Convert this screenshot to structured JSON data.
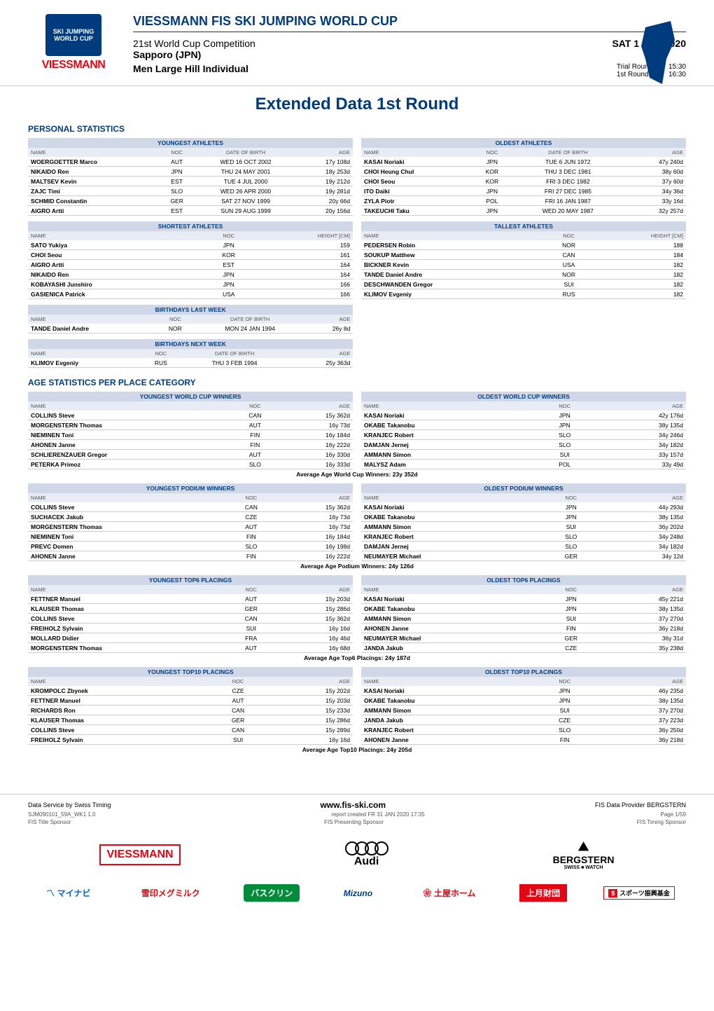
{
  "header": {
    "fis_logo_text": "SKI JUMPING WORLD CUP",
    "sponsor_header": "VIESSMANN",
    "cup_title": "VIESSMANN FIS SKI JUMPING WORLD CUP",
    "competition": "21st World Cup Competition",
    "location": "Sapporo (JPN)",
    "event": "Men Large Hill Individual",
    "date": "SAT 1 FEB 2020",
    "trial_label": "Trial Round:",
    "trial_time": "15:30",
    "first_label": "1st Round:",
    "first_time": "16:30"
  },
  "main_title": "Extended Data 1st Round",
  "sections": {
    "personal_stats_title": "PERSONAL STATISTICS",
    "age_stats_title": "AGE STATISTICS PER PLACE CATEGORY"
  },
  "tables": {
    "youngest_athletes": {
      "title": "YOUNGEST ATHLETES",
      "cols": [
        "NAME",
        "NOC",
        "DATE OF BIRTH",
        "AGE"
      ],
      "rows": [
        [
          "WOERGOETTER Marco",
          "AUT",
          "WED 16 OCT 2002",
          "17y 108d"
        ],
        [
          "NIKAIDO Ren",
          "JPN",
          "THU 24 MAY 2001",
          "18y 253d"
        ],
        [
          "MALTSEV Kevin",
          "EST",
          "TUE 4 JUL 2000",
          "19y 212d"
        ],
        [
          "ZAJC Timi",
          "SLO",
          "WED 26 APR 2000",
          "19y 281d"
        ],
        [
          "SCHMID Constantin",
          "GER",
          "SAT 27 NOV 1999",
          "20y 66d"
        ],
        [
          "AIGRO Artti",
          "EST",
          "SUN 29 AUG 1999",
          "20y 156d"
        ]
      ]
    },
    "oldest_athletes": {
      "title": "OLDEST ATHLETES",
      "cols": [
        "NAME",
        "NOC",
        "DATE OF BIRTH",
        "AGE"
      ],
      "rows": [
        [
          "KASAI Noriaki",
          "JPN",
          "TUE 6 JUN 1972",
          "47y 240d"
        ],
        [
          "CHOI Heung Chul",
          "KOR",
          "THU 3 DEC 1981",
          "38y 60d"
        ],
        [
          "CHOI Seou",
          "KOR",
          "FRI 3 DEC 1982",
          "37y 60d"
        ],
        [
          "ITO Daiki",
          "JPN",
          "FRI 27 DEC 1985",
          "34y 36d"
        ],
        [
          "ZYLA Piotr",
          "POL",
          "FRI 16 JAN 1987",
          "33y 16d"
        ],
        [
          "TAKEUCHI Taku",
          "JPN",
          "WED 20 MAY 1987",
          "32y 257d"
        ]
      ]
    },
    "shortest_athletes": {
      "title": "SHORTEST ATHLETES",
      "cols": [
        "NAME",
        "NOC",
        "HEIGHT [CM]"
      ],
      "rows": [
        [
          "SATO Yukiya",
          "JPN",
          "159"
        ],
        [
          "CHOI Seou",
          "KOR",
          "161"
        ],
        [
          "AIGRO Artti",
          "EST",
          "164"
        ],
        [
          "NIKAIDO Ren",
          "JPN",
          "164"
        ],
        [
          "KOBAYASHI Junshiro",
          "JPN",
          "166"
        ],
        [
          "GASIENICA Patrick",
          "USA",
          "166"
        ]
      ]
    },
    "tallest_athletes": {
      "title": "TALLEST ATHLETES",
      "cols": [
        "NAME",
        "NOC",
        "HEIGHT [CM]"
      ],
      "rows": [
        [
          "PEDERSEN Robin",
          "NOR",
          "188"
        ],
        [
          "SOUKUP Matthew",
          "CAN",
          "184"
        ],
        [
          "BICKNER Kevin",
          "USA",
          "182"
        ],
        [
          "TANDE Daniel Andre",
          "NOR",
          "182"
        ],
        [
          "DESCHWANDEN Gregor",
          "SUI",
          "182"
        ],
        [
          "KLIMOV Evgeniy",
          "RUS",
          "182"
        ]
      ]
    },
    "birthdays_last": {
      "title": "BIRTHDAYS LAST WEEK",
      "cols": [
        "NAME",
        "NOC",
        "DATE OF BIRTH",
        "AGE"
      ],
      "rows": [
        [
          "TANDE Daniel Andre",
          "NOR",
          "MON 24 JAN 1994",
          "26y 8d"
        ]
      ]
    },
    "birthdays_next": {
      "title": "BIRTHDAYS NEXT WEEK",
      "cols": [
        "NAME",
        "NOC",
        "DATE OF BIRTH",
        "AGE"
      ],
      "rows": [
        [
          "KLIMOV Evgeniy",
          "RUS",
          "THU 3 FEB 1994",
          "25y 363d"
        ]
      ]
    },
    "youngest_wc_winners": {
      "title": "YOUNGEST WORLD CUP WINNERS",
      "cols": [
        "NAME",
        "NOC",
        "AGE"
      ],
      "rows": [
        [
          "COLLINS Steve",
          "CAN",
          "15y 362d"
        ],
        [
          "MORGENSTERN Thomas",
          "AUT",
          "16y 73d"
        ],
        [
          "NIEMINEN Toni",
          "FIN",
          "16y 184d"
        ],
        [
          "AHONEN Janne",
          "FIN",
          "16y 222d"
        ],
        [
          "SCHLIERENZAUER Gregor",
          "AUT",
          "16y 330d"
        ],
        [
          "PETERKA Primoz",
          "SLO",
          "16y 333d"
        ]
      ]
    },
    "oldest_wc_winners": {
      "title": "OLDEST WORLD CUP WINNERS",
      "cols": [
        "NAME",
        "NOC",
        "AGE"
      ],
      "rows": [
        [
          "KASAI Noriaki",
          "JPN",
          "42y 176d"
        ],
        [
          "OKABE Takanobu",
          "JPN",
          "38y 135d"
        ],
        [
          "KRANJEC Robert",
          "SLO",
          "34y 246d"
        ],
        [
          "DAMJAN Jernej",
          "SLO",
          "34y 182d"
        ],
        [
          "AMMANN Simon",
          "SUI",
          "33y 157d"
        ],
        [
          "MALYSZ Adam",
          "POL",
          "33y 49d"
        ]
      ],
      "avg": "Average Age World Cup Winners:  23y 352d"
    },
    "youngest_podium": {
      "title": "YOUNGEST PODIUM WINNERS",
      "cols": [
        "NAME",
        "NOC",
        "AGE"
      ],
      "rows": [
        [
          "COLLINS Steve",
          "CAN",
          "15y 362d"
        ],
        [
          "SUCHACEK Jakub",
          "CZE",
          "16y 73d"
        ],
        [
          "MORGENSTERN Thomas",
          "AUT",
          "16y 73d"
        ],
        [
          "NIEMINEN Toni",
          "FIN",
          "16y 184d"
        ],
        [
          "PREVC Domen",
          "SLO",
          "16y 198d"
        ],
        [
          "AHONEN Janne",
          "FIN",
          "16y 222d"
        ]
      ]
    },
    "oldest_podium": {
      "title": "OLDEST PODIUM WINNERS",
      "cols": [
        "NAME",
        "NOC",
        "AGE"
      ],
      "rows": [
        [
          "KASAI Noriaki",
          "JPN",
          "44y 293d"
        ],
        [
          "OKABE Takanobu",
          "JPN",
          "38y 135d"
        ],
        [
          "AMMANN Simon",
          "SUI",
          "36y 202d"
        ],
        [
          "KRANJEC Robert",
          "SLO",
          "34y 248d"
        ],
        [
          "DAMJAN Jernej",
          "SLO",
          "34y 182d"
        ],
        [
          "NEUMAYER Michael",
          "GER",
          "34y 12d"
        ]
      ],
      "avg": "Average Age Podium Winners:  24y 126d"
    },
    "youngest_top6": {
      "title": "YOUNGEST TOP6 PLACINGS",
      "cols": [
        "NAME",
        "NOC",
        "AGE"
      ],
      "rows": [
        [
          "FETTNER Manuel",
          "AUT",
          "15y 203d"
        ],
        [
          "KLAUSER Thomas",
          "GER",
          "15y 286d"
        ],
        [
          "COLLINS Steve",
          "CAN",
          "15y 362d"
        ],
        [
          "FREIHOLZ Sylvain",
          "SUI",
          "16y 16d"
        ],
        [
          "MOLLARD Didier",
          "FRA",
          "16y 46d"
        ],
        [
          "MORGENSTERN Thomas",
          "AUT",
          "16y 68d"
        ]
      ]
    },
    "oldest_top6": {
      "title": "OLDEST TOP6 PLACINGS",
      "cols": [
        "NAME",
        "NOC",
        "AGE"
      ],
      "rows": [
        [
          "KASAI Noriaki",
          "JPN",
          "45y 221d"
        ],
        [
          "OKABE Takanobu",
          "JPN",
          "38y 135d"
        ],
        [
          "AMMANN Simon",
          "SUI",
          "37y 270d"
        ],
        [
          "AHONEN Janne",
          "FIN",
          "36y 218d"
        ],
        [
          "NEUMAYER Michael",
          "GER",
          "36y 31d"
        ],
        [
          "JANDA Jakub",
          "CZE",
          "35y 238d"
        ]
      ],
      "avg": "Average Age Top6 Placings:  24y 187d"
    },
    "youngest_top10": {
      "title": "YOUNGEST TOP10 PLACINGS",
      "cols": [
        "NAME",
        "NOC",
        "AGE"
      ],
      "rows": [
        [
          "KROMPOLC Zbynek",
          "CZE",
          "15y 202d"
        ],
        [
          "FETTNER Manuel",
          "AUT",
          "15y 203d"
        ],
        [
          "RICHARDS Ron",
          "CAN",
          "15y 233d"
        ],
        [
          "KLAUSER Thomas",
          "GER",
          "15y 286d"
        ],
        [
          "COLLINS Steve",
          "CAN",
          "15y 289d"
        ],
        [
          "FREIHOLZ Sylvain",
          "SUI",
          "16y 16d"
        ]
      ]
    },
    "oldest_top10": {
      "title": "OLDEST TOP10 PLACINGS",
      "cols": [
        "NAME",
        "NOC",
        "AGE"
      ],
      "rows": [
        [
          "KASAI Noriaki",
          "JPN",
          "46y 235d"
        ],
        [
          "OKABE Takanobu",
          "JPN",
          "38y 135d"
        ],
        [
          "AMMANN Simon",
          "SUI",
          "37y 270d"
        ],
        [
          "JANDA Jakub",
          "CZE",
          "37y 223d"
        ],
        [
          "KRANJEC Robert",
          "SLO",
          "36y 250d"
        ],
        [
          "AHONEN Janne",
          "FIN",
          "36y 218d"
        ]
      ],
      "avg": "Average Age Top10 Placings:  24y 205d"
    }
  },
  "footer": {
    "data_service": "Data Service by Swiss Timing",
    "url": "www.fis-ski.com",
    "provider": "FIS Data Provider BERGSTERN",
    "report_id": "SJM090101_59A_WK1 1.0",
    "report_created": "report created  FR 31 JAN 2020 17:35",
    "page": "Page 1/59",
    "title_sponsor": "FIS Title Sponsor",
    "presenting_sponsor": "FIS Presenting Sponsor",
    "timing_sponsor": "FIS Timing Sponsor"
  },
  "sponsors": {
    "viessmann": "VIESSMANN",
    "audi": "Audi",
    "bergstern": "BERGSTERN",
    "bergstern_sub": "SWISS ■ WATCH",
    "mynavi": "マイナビ",
    "yukijirushi": "雪印メグミルク",
    "bathclin": "バスクリン",
    "mizuno": "Mizuno",
    "tsuchiya": "土屋ホーム",
    "uetsuki": "上月財団",
    "sports_fund": "スポーツ振興基金"
  },
  "colors": {
    "primary": "#003c7d",
    "accent": "#e30613",
    "header_bg": "#d0d8e8",
    "subheader_bg": "#e8ecf4",
    "border": "#cccccc"
  }
}
